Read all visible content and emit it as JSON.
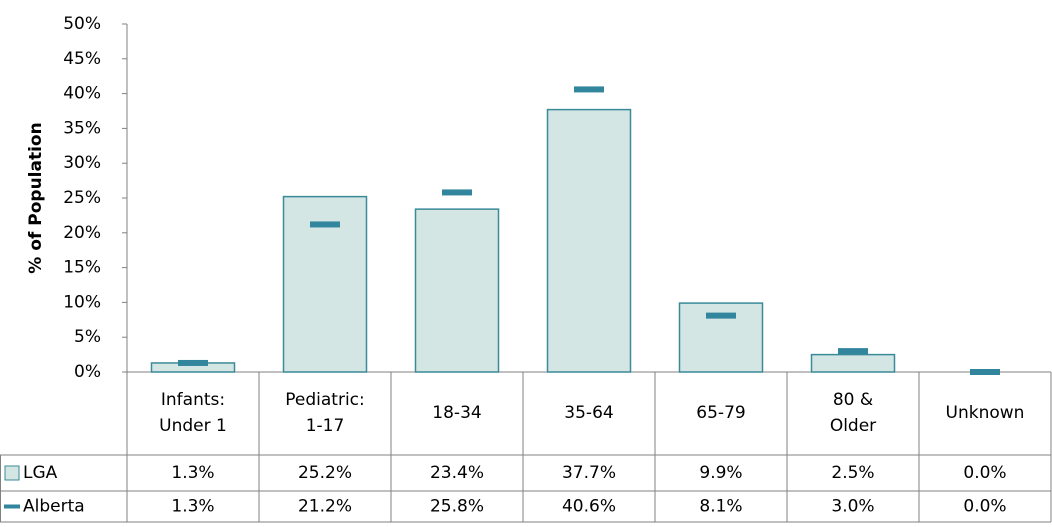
{
  "chart_data": {
    "type": "bar",
    "y_label": "% of Population",
    "categories": [
      "Infants:\nUnder 1",
      "Pediatric:\n1-17",
      "18-34",
      "35-64",
      "65-79",
      "80 &\nOlder",
      "Unknown"
    ],
    "series": [
      {
        "name": "LGA",
        "color": "#d3e6e4",
        "edge": "#3a8a98",
        "marker": "bar",
        "values": [
          1.3,
          25.2,
          23.4,
          37.7,
          9.9,
          2.5,
          0.0
        ],
        "value_labels": [
          "1.3%",
          "25.2%",
          "23.4%",
          "37.7%",
          "9.9%",
          "2.5%",
          "0.0%"
        ]
      },
      {
        "name": "Alberta",
        "color": "#31859c",
        "marker": "dash",
        "values": [
          1.3,
          21.2,
          25.8,
          40.6,
          8.1,
          3.0,
          0.0
        ],
        "value_labels": [
          "1.3%",
          "21.2%",
          "25.8%",
          "40.6%",
          "8.1%",
          "3.0%",
          "0.0%"
        ]
      }
    ],
    "ylim": [
      0,
      50
    ],
    "yticks": [
      {
        "value": 0,
        "label": "0%"
      },
      {
        "value": 5,
        "label": "5%"
      },
      {
        "value": 10,
        "label": "10%"
      },
      {
        "value": 15,
        "label": "15%"
      },
      {
        "value": 20,
        "label": "20%"
      },
      {
        "value": 25,
        "label": "25%"
      },
      {
        "value": 30,
        "label": "30%"
      },
      {
        "value": 35,
        "label": "35%"
      },
      {
        "value": 40,
        "label": "40%"
      },
      {
        "value": 45,
        "label": "45%"
      },
      {
        "value": 50,
        "label": "50%"
      }
    ],
    "grid": false
  }
}
